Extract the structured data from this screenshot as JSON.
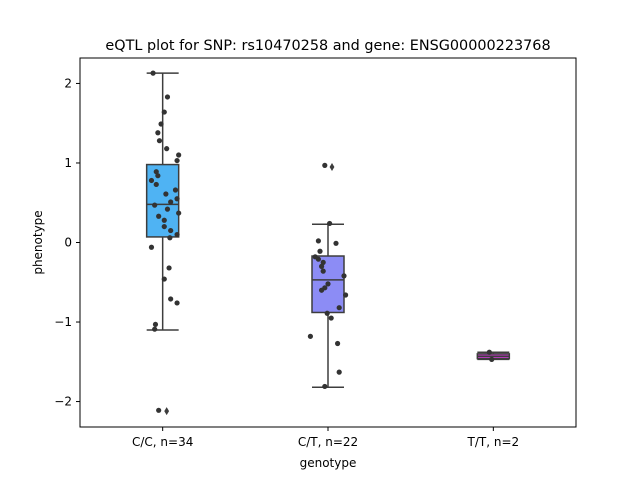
{
  "chart_data": {
    "type": "box",
    "title": "eQTL plot for SNP: rs10470258 and gene: ENSG00000223768",
    "xlabel": "genotype",
    "ylabel": "phenotype",
    "ylim": [
      -2.32,
      2.32
    ],
    "yticks": [
      {
        "value": 2,
        "label": "2"
      },
      {
        "value": 1,
        "label": "1"
      },
      {
        "value": 0,
        "label": "0"
      },
      {
        "value": -1,
        "label": "−1"
      },
      {
        "value": -2,
        "label": "−2"
      }
    ],
    "grid": false,
    "categories": [
      "C/C, n=34",
      "C/T, n=22",
      "T/T, n=2"
    ],
    "boxes": [
      {
        "category": "C/C, n=34",
        "q1": 0.07,
        "median": 0.48,
        "q3": 0.98,
        "whisker_low": -1.1,
        "whisker_high": 2.13,
        "outliers": [
          -2.12
        ],
        "color": "#4fb3f3"
      },
      {
        "category": "C/T, n=22",
        "q1": -0.88,
        "median": -0.47,
        "q3": -0.17,
        "whisker_low": -1.82,
        "whisker_high": 0.23,
        "outliers": [
          0.95
        ],
        "color": "#8c8cf5"
      },
      {
        "category": "T/T, n=2",
        "q1": -1.46,
        "median": -1.43,
        "q3": -1.4,
        "whisker_low": -1.47,
        "whisker_high": -1.38,
        "outliers": [],
        "color": "#c43bc8"
      }
    ],
    "points": [
      {
        "category": "C/C, n=34",
        "values": [
          2.13,
          1.83,
          1.64,
          1.49,
          1.38,
          1.28,
          1.18,
          1.1,
          1.03,
          0.89,
          0.84,
          0.78,
          0.73,
          0.66,
          0.61,
          0.55,
          0.51,
          0.47,
          0.42,
          0.37,
          0.33,
          0.28,
          0.2,
          0.15,
          0.1,
          0.06,
          -0.06,
          -0.32,
          -0.46,
          -0.71,
          -0.76,
          -1.03,
          -1.09,
          -2.11
        ],
        "jitter": [
          -0.12,
          0.06,
          0.02,
          -0.02,
          -0.06,
          -0.04,
          0.05,
          0.2,
          0.18,
          -0.08,
          -0.06,
          -0.14,
          -0.08,
          0.16,
          0.04,
          0.18,
          0.1,
          -0.1,
          0.06,
          0.2,
          -0.05,
          0.02,
          0.02,
          0.1,
          0.18,
          0.09,
          -0.14,
          0.08,
          0.02,
          0.1,
          0.18,
          -0.09,
          -0.1,
          -0.05
        ]
      },
      {
        "category": "C/T, n=22",
        "values": [
          0.97,
          0.24,
          0.02,
          -0.01,
          -0.11,
          -0.18,
          -0.21,
          -0.25,
          -0.3,
          -0.36,
          -0.42,
          -0.52,
          -0.57,
          -0.6,
          -0.66,
          -0.82,
          -0.89,
          -0.95,
          -1.18,
          -1.27,
          -1.63,
          -1.81
        ],
        "jitter": [
          -0.04,
          0.02,
          -0.12,
          0.1,
          -0.1,
          -0.16,
          -0.12,
          -0.06,
          -0.08,
          -0.06,
          0.2,
          0.0,
          -0.04,
          -0.08,
          0.22,
          0.14,
          -0.01,
          0.04,
          -0.22,
          0.12,
          0.14,
          -0.04
        ]
      },
      {
        "category": "T/T, n=2",
        "values": [
          -1.38,
          -1.47
        ],
        "jitter": [
          -0.05,
          -0.02
        ]
      }
    ]
  }
}
